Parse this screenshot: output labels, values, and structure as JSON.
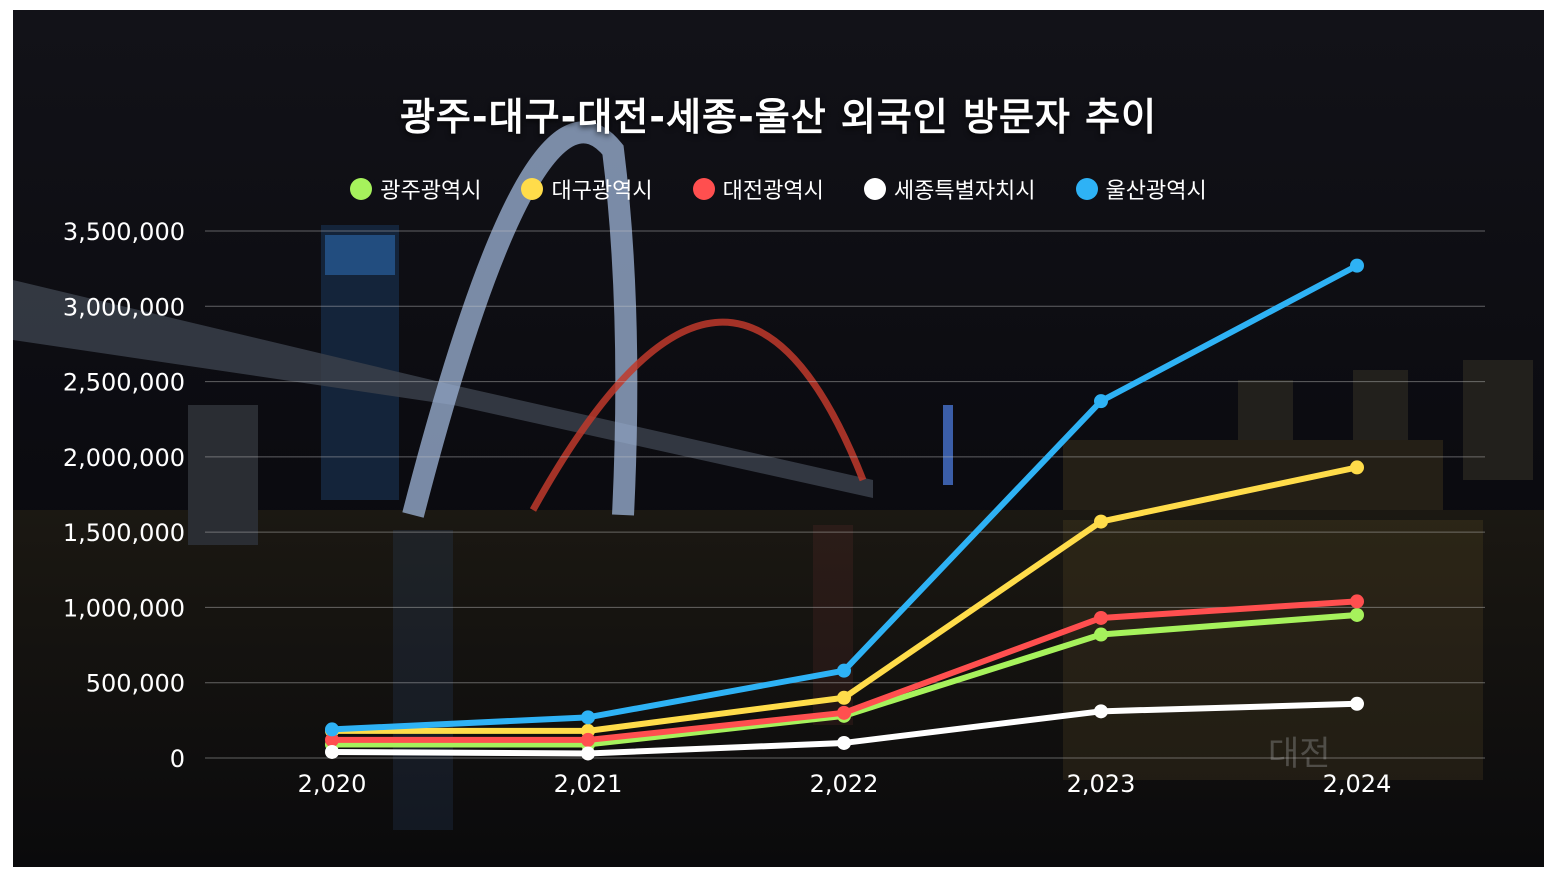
{
  "colors": {
    "광주광역시": "#a6f25c",
    "대구광역시": "#ffdc4a",
    "대전광역시": "#ff4f4f",
    "세종특별자치시": "#ffffff",
    "울산광역시": "#2eb2f5"
  },
  "chart_data": {
    "type": "line",
    "title": "광주-대구-대전-세종-울산 외국인 방문자 추이",
    "xlabel": "",
    "ylabel": "",
    "x": [
      "2,020",
      "2,021",
      "2,022",
      "2,023",
      "2,024"
    ],
    "x_values": [
      2020,
      2021,
      2022,
      2023,
      2024
    ],
    "ylim": [
      0,
      3500000
    ],
    "yticks": [
      0,
      500000,
      1000000,
      1500000,
      2000000,
      2500000,
      3000000,
      3500000
    ],
    "ytick_labels": [
      "0",
      "500,000",
      "1,000,000",
      "1,500,000",
      "2,000,000",
      "2,500,000",
      "3,000,000",
      "3,500,000"
    ],
    "grid": true,
    "legend_position": "top",
    "series": [
      {
        "name": "광주광역시",
        "values": [
          90000,
          90000,
          280000,
          820000,
          950000
        ]
      },
      {
        "name": "대구광역시",
        "values": [
          180000,
          180000,
          400000,
          1570000,
          1930000
        ]
      },
      {
        "name": "대전광역시",
        "values": [
          120000,
          120000,
          300000,
          930000,
          1040000
        ]
      },
      {
        "name": "세종특별자치시",
        "values": [
          40000,
          30000,
          100000,
          310000,
          360000
        ]
      },
      {
        "name": "울산광역시",
        "values": [
          190000,
          270000,
          580000,
          2370000,
          3270000
        ]
      }
    ]
  }
}
